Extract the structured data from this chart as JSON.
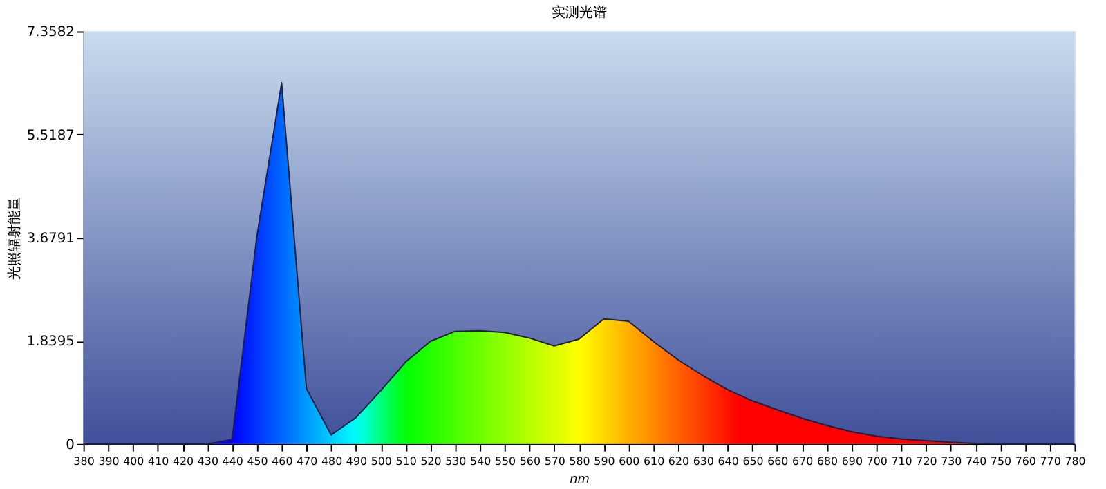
{
  "chart_data": {
    "type": "area",
    "title": "实测光谱",
    "xlabel": "nm",
    "ylabel": "光照辐射能量",
    "x": [
      380,
      390,
      400,
      410,
      420,
      430,
      440,
      450,
      460,
      470,
      480,
      490,
      500,
      510,
      520,
      530,
      540,
      550,
      560,
      570,
      580,
      590,
      600,
      610,
      620,
      630,
      640,
      650,
      660,
      670,
      680,
      690,
      700,
      710,
      720,
      730,
      740,
      750,
      760,
      770,
      780
    ],
    "series": [
      {
        "color": "#1f1f3f",
        "values": [
          0,
          0,
          0,
          0,
          0,
          0,
          0.08,
          3.7,
          6.44,
          0.99,
          0.16,
          0.47,
          0.95,
          1.46,
          1.83,
          2.01,
          2.02,
          1.99,
          1.89,
          1.75,
          1.87,
          2.23,
          2.19,
          1.83,
          1.5,
          1.22,
          0.97,
          0.77,
          0.61,
          0.46,
          0.33,
          0.22,
          0.14,
          0.09,
          0.06,
          0.03,
          0.01,
          0,
          0,
          0,
          0
        ]
      }
    ],
    "xlim": [
      380,
      780
    ],
    "xticks": [
      380,
      390,
      400,
      410,
      420,
      430,
      440,
      450,
      460,
      470,
      480,
      490,
      500,
      510,
      520,
      530,
      540,
      550,
      560,
      570,
      580,
      590,
      600,
      610,
      620,
      630,
      640,
      650,
      660,
      670,
      680,
      690,
      700,
      710,
      720,
      730,
      740,
      750,
      760,
      770,
      780
    ],
    "ylim": [
      0,
      7.3582
    ],
    "yticks": [
      0,
      1.8395,
      3.6791,
      5.5187,
      7.3582
    ],
    "grid": false
  }
}
